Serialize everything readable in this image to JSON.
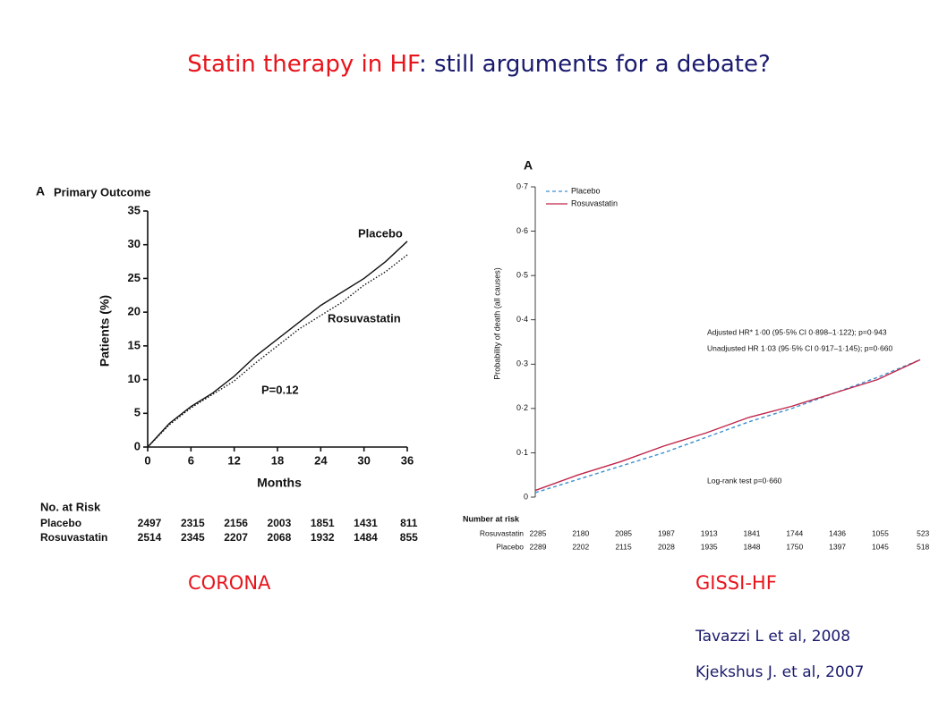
{
  "title_parts": [
    "Statin therapy in HF",
    ": still arguments for a debate?"
  ],
  "captions": [
    "CORONA",
    "GISSI-HF"
  ],
  "citations": [
    "Tavazzi L et al, 2008",
    "Kjekshus J. et al, 2007"
  ],
  "chart_data": [
    {
      "type": "line",
      "panel": "A",
      "title": "Primary Outcome",
      "x_label": "Months",
      "y_label": "Patients (%)",
      "x": [
        0,
        3,
        6,
        9,
        12,
        15,
        18,
        21,
        24,
        27,
        30,
        33,
        36
      ],
      "xlim": [
        0,
        36
      ],
      "xticks": [
        0,
        6,
        12,
        18,
        24,
        30,
        36
      ],
      "ylim": [
        0,
        35
      ],
      "yticks": [
        0,
        5,
        10,
        15,
        20,
        25,
        30,
        35
      ],
      "grid": false,
      "legend": "direct",
      "series": [
        {
          "name": "Placebo",
          "color": "#111111",
          "style": "solid",
          "values": [
            0,
            3.5,
            6,
            8,
            10.5,
            13.5,
            16,
            18.5,
            21,
            23,
            25,
            27.5,
            30.5
          ]
        },
        {
          "name": "Rosuvastatin",
          "color": "#111111",
          "style": "dotted",
          "values": [
            0,
            3.3,
            5.8,
            7.8,
            9.8,
            12.5,
            15,
            17.5,
            19.5,
            21.5,
            24,
            26,
            28.5
          ]
        }
      ],
      "annotations": [
        "P=0.12"
      ],
      "risk_table": {
        "title": "No. at Risk",
        "rows": [
          {
            "name": "Placebo",
            "values": [
              "2497",
              "2315",
              "2156",
              "2003",
              "1851",
              "1431",
              "811"
            ]
          },
          {
            "name": "Rosuvastatin",
            "values": [
              "2514",
              "2345",
              "2207",
              "2068",
              "1932",
              "1484",
              "855"
            ]
          }
        ]
      }
    },
    {
      "type": "line",
      "panel": "A",
      "y_label": "Probability of death (all causes)",
      "categories": [
        null,
        null,
        null,
        null,
        null,
        null,
        null,
        null,
        null,
        null
      ],
      "ylim": [
        0,
        0.7
      ],
      "yticks": [
        0,
        {
          "value": 0.1,
          "label": "0·1"
        },
        {
          "value": 0.2,
          "label": "0·2"
        },
        {
          "value": 0.3,
          "label": "0·3"
        },
        {
          "value": 0.4,
          "label": "0·4"
        },
        {
          "value": 0.5,
          "label": "0·5"
        },
        {
          "value": 0.6,
          "label": "0·6"
        },
        {
          "value": 0.7,
          "label": "0·7"
        }
      ],
      "grid": false,
      "legend": "upper left",
      "series": [
        {
          "name": "Placebo",
          "color": "#3b8fd0",
          "style": "dashed",
          "values": [
            0.01,
            0.04,
            0.07,
            0.1,
            0.135,
            0.17,
            0.2,
            0.235,
            0.27,
            0.31
          ]
        },
        {
          "name": "Rosuvastatin",
          "color": "#c0254a",
          "style": "solid",
          "values": [
            0.015,
            0.05,
            0.08,
            0.115,
            0.145,
            0.18,
            0.205,
            0.235,
            0.265,
            0.31
          ]
        }
      ],
      "annotations": [
        "Adjusted HR* 1·00 (95·5% CI 0·898–1·122); p=0·943",
        "Unadjusted HR 1·03 (95·5% CI 0·917–1·145); p=0·660",
        "Log-rank test p=0·660"
      ],
      "risk_table": {
        "title": "Number at risk",
        "rows": [
          {
            "name": "Rosuvastatin",
            "values": [
              "2285",
              "2180",
              "2085",
              "1987",
              "1913",
              "1841",
              "1744",
              "1436",
              "1055",
              "523"
            ]
          },
          {
            "name": "Placebo",
            "values": [
              "2289",
              "2202",
              "2115",
              "2028",
              "1935",
              "1848",
              "1750",
              "1397",
              "1045",
              "518"
            ]
          }
        ]
      }
    }
  ]
}
